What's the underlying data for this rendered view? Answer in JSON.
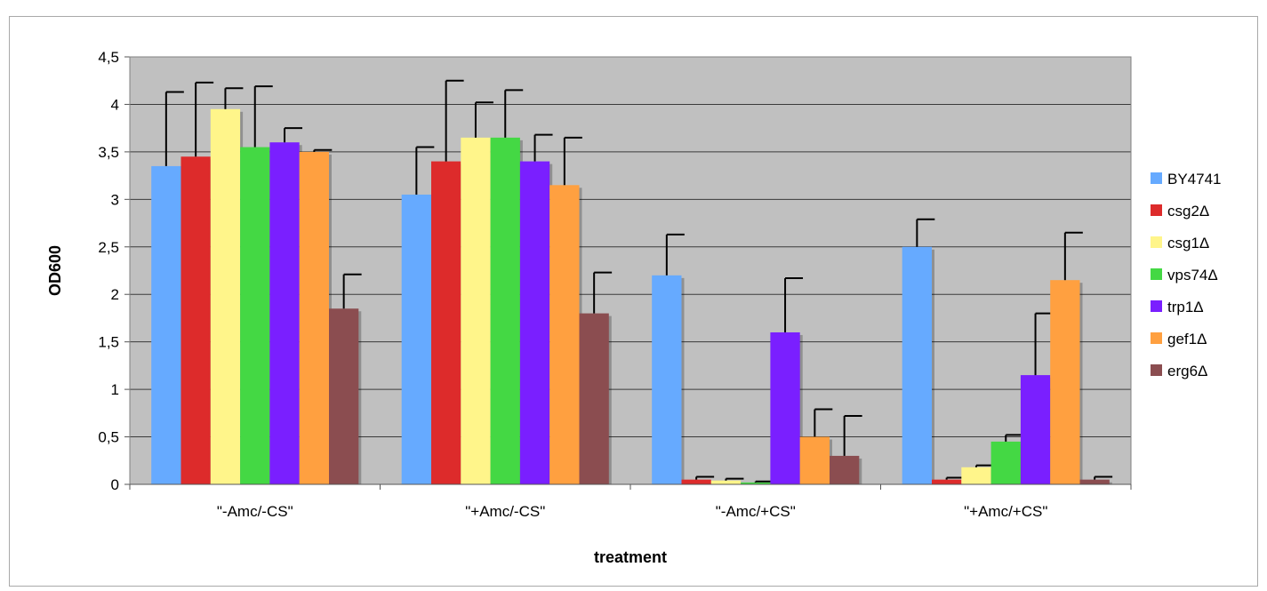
{
  "chart_data": {
    "type": "bar",
    "xlabel": "treatment",
    "ylabel": "OD600",
    "ylim": [
      0,
      4.5
    ],
    "yticks": [
      "0",
      "0,5",
      "1",
      "1,5",
      "2",
      "2,5",
      "3",
      "3,5",
      "4",
      "4,5"
    ],
    "grid": true,
    "legend_position": "right",
    "categories": [
      "\"-Amc/-CS\"",
      "\"+Amc/-CS\"",
      "\"-Amc/+CS\"",
      "\"+Amc/+CS\""
    ],
    "series": [
      {
        "name": "BY4741",
        "color": "#66aaff",
        "values": [
          3.35,
          3.05,
          2.2,
          2.5
        ],
        "errors": [
          0.78,
          0.5,
          0.43,
          0.29
        ]
      },
      {
        "name": "csg2Δ",
        "color": "#dd2b2b",
        "values": [
          3.45,
          3.4,
          0.05,
          0.05
        ],
        "errors": [
          0.78,
          0.85,
          0.03,
          0.02
        ]
      },
      {
        "name": "csg1Δ",
        "color": "#fff58a",
        "values": [
          3.95,
          3.65,
          0.04,
          0.18
        ],
        "errors": [
          0.22,
          0.37,
          0.02,
          0.02
        ]
      },
      {
        "name": "vps74Δ",
        "color": "#44d844",
        "values": [
          3.55,
          3.65,
          0.02,
          0.45
        ],
        "errors": [
          0.64,
          0.5,
          0.01,
          0.07
        ]
      },
      {
        "name": "trp1Δ",
        "color": "#7a1fff",
        "values": [
          3.6,
          3.4,
          1.6,
          1.15
        ],
        "errors": [
          0.15,
          0.28,
          0.57,
          0.65
        ]
      },
      {
        "name": "gef1Δ",
        "color": "#ffa040",
        "values": [
          3.5,
          3.15,
          0.5,
          2.15
        ],
        "errors": [
          0.02,
          0.5,
          0.29,
          0.5
        ]
      },
      {
        "name": "erg6Δ",
        "color": "#8b4d50",
        "values": [
          1.85,
          1.8,
          0.3,
          0.05
        ],
        "errors": [
          0.36,
          0.43,
          0.42,
          0.03
        ]
      }
    ]
  }
}
